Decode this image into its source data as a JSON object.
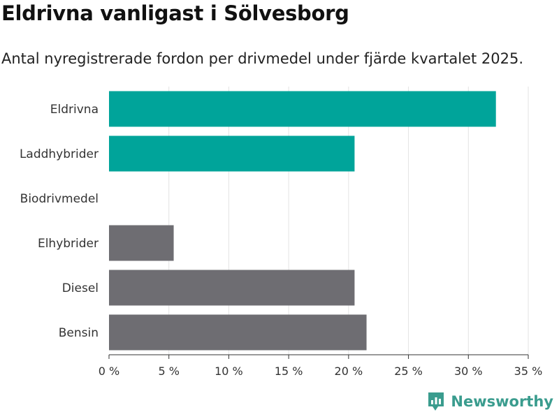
{
  "header": {
    "title": "Eldrivna vanligast i Sölvesborg",
    "subtitle": "Antal nyregistrerade fordon per drivmedel under fjärde kvartalet 2025."
  },
  "brand": {
    "name": "Newsworthy",
    "icon": "newsworthy-logo-icon",
    "color": "#3a9c8e"
  },
  "chart_data": {
    "type": "bar",
    "orientation": "horizontal",
    "categories": [
      "Eldrivna",
      "Laddhybrider",
      "Biodrivmedel",
      "Elhybrider",
      "Diesel",
      "Bensin"
    ],
    "values": [
      32.3,
      20.5,
      0,
      5.4,
      20.5,
      21.5
    ],
    "colors": [
      "#00a49a",
      "#00a49a",
      "#00a49a",
      "#6e6d72",
      "#6e6d72",
      "#6e6d72"
    ],
    "xlim": [
      0,
      35
    ],
    "xticks": [
      0,
      5,
      10,
      15,
      20,
      25,
      30,
      35
    ],
    "xtick_labels": [
      "0 %",
      "5 %",
      "10 %",
      "15 %",
      "20 %",
      "25 %",
      "30 %",
      "35 %"
    ],
    "grid": true
  }
}
